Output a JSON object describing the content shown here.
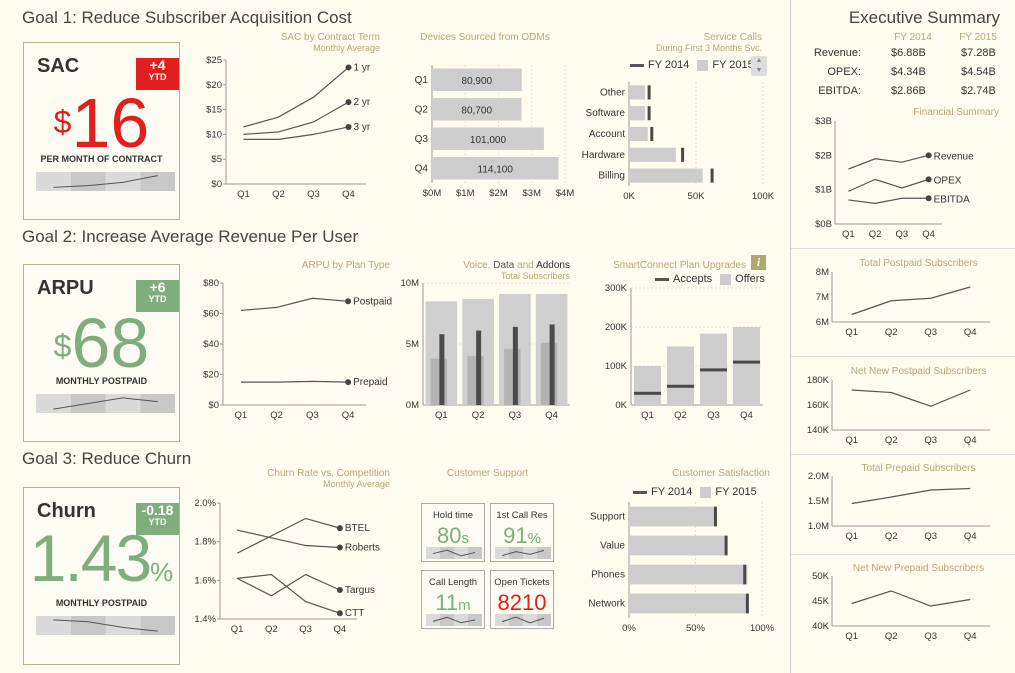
{
  "colors": {
    "red": "#e0201f",
    "green": "#7fad7d",
    "gray": "#cdcdcd",
    "dark": "#4a4a4a",
    "spark_bg": "#d3d3d3"
  },
  "goals": {
    "g1": "Goal 1: Reduce Subscriber Acquisition Cost",
    "g2": "Goal 2: Increase Average Revenue Per User",
    "g3": "Goal 3: Reduce Churn"
  },
  "kpis": [
    {
      "name": "SAC",
      "badge": "+4",
      "badge_sub": "YTD",
      "prefix": "$",
      "value": "16",
      "suffix": "",
      "caption": "PER MONTH OF CONTRACT",
      "color": "red"
    },
    {
      "name": "ARPU",
      "badge": "+6",
      "badge_sub": "YTD",
      "prefix": "$",
      "value": "68",
      "suffix": "",
      "caption": "MONTHLY POSTPAID",
      "color": "green"
    },
    {
      "name": "Churn",
      "badge": "-0.18",
      "badge_sub": "YTD",
      "prefix": "",
      "value": "1.43",
      "suffix": "%",
      "caption": "MONTHLY POSTPAID",
      "color": "green"
    }
  ],
  "charts": {
    "sac_term": {
      "title": "SAC by Contract Term",
      "subtitle": "Monthly Average"
    },
    "odm": {
      "title": "Devices Sourced from ODMs"
    },
    "service": {
      "title": "Service Calls",
      "subtitle": "During First 3 Months Svc.",
      "legend_a": "FY 2014",
      "legend_b": "FY 2015"
    },
    "arpu_plan": {
      "title": "ARPU by Plan Type"
    },
    "voice": {
      "title_a": "Voice, ",
      "title_b": "Data",
      "title_c": " and ",
      "title_d": "Addons",
      "subtitle": "Total Subscribers"
    },
    "smart": {
      "title": "SmartConnect Plan Upgrades",
      "info": "i",
      "legend_a": "Accepts",
      "legend_b": "Offers"
    },
    "churn_comp": {
      "title": "Churn Rate vs. Competition",
      "subtitle": "Monthly Average"
    },
    "support": {
      "title": "Customer Support"
    },
    "csat": {
      "title": "Customer Satisfaction",
      "legend_a": "FY 2014",
      "legend_b": "FY 2015"
    }
  },
  "support_boxes": [
    {
      "label": "Hold time",
      "value": "80",
      "unit": "s",
      "color": "green"
    },
    {
      "label": "1st Call Res",
      "value": "91",
      "unit": "%",
      "color": "green"
    },
    {
      "label": "Call Length",
      "value": "11",
      "unit": "m",
      "color": "green"
    },
    {
      "label": "Open Tickets",
      "value": "8210",
      "unit": "",
      "color": "red"
    }
  ],
  "exec": {
    "title": "Executive Summary",
    "col_a": "FY 2014",
    "col_b": "FY 2015",
    "rows": [
      {
        "label": "Revenue:",
        "a": "$6.88B",
        "b": "$7.28B"
      },
      {
        "label": "OPEX:",
        "a": "$4.34B",
        "b": "$4.54B"
      },
      {
        "label": "EBITDA:",
        "a": "$2.86B",
        "b": "$2.74B"
      }
    ],
    "fin_title": "Financial Summary",
    "t_post": "Total Postpaid Subscribers",
    "n_post": "Net New Postpaid Subscribers",
    "t_pre": "Total Prepaid Subscribers",
    "n_pre": "Net New Prepaid Subscribers"
  },
  "chart_data": [
    {
      "id": "sac_term",
      "type": "line",
      "categories": [
        "Q1",
        "Q2",
        "Q3",
        "Q4"
      ],
      "ylim": [
        0,
        25
      ],
      "yticks": [
        "$0",
        "$5",
        "$10",
        "$15",
        "$20",
        "$25"
      ],
      "series": [
        {
          "name": "1 yr",
          "values": [
            11.5,
            13.5,
            17.5,
            23.5
          ]
        },
        {
          "name": "2 yr",
          "values": [
            10,
            10.5,
            12.5,
            16.5
          ]
        },
        {
          "name": "3 yr",
          "values": [
            9,
            9,
            10,
            11.5
          ]
        }
      ]
    },
    {
      "id": "odm",
      "type": "bar",
      "categories": [
        "Q1",
        "Q2",
        "Q3",
        "Q4"
      ],
      "values": [
        80900,
        80700,
        101000,
        114100
      ],
      "labels": [
        "80,900",
        "80,700",
        "101,000",
        "114,100"
      ],
      "xlim": [
        0,
        4
      ],
      "xticks": [
        "$0M",
        "$1M",
        "$2M",
        "$3M",
        "$4M"
      ]
    },
    {
      "id": "service",
      "type": "bar",
      "categories": [
        "Other",
        "Software",
        "Account",
        "Hardware",
        "Billing"
      ],
      "xlim": [
        0,
        100000
      ],
      "xticks": [
        "0K",
        "50K",
        "100K"
      ],
      "series": [
        {
          "name": "FY 2014",
          "values": [
            15000,
            15000,
            17000,
            40000,
            62000
          ]
        },
        {
          "name": "FY 2015",
          "values": [
            12000,
            12000,
            14000,
            35000,
            55000
          ]
        }
      ]
    },
    {
      "id": "arpu_plan",
      "type": "line",
      "categories": [
        "Q1",
        "Q2",
        "Q3",
        "Q4"
      ],
      "ylim": [
        0,
        80
      ],
      "yticks": [
        "$0",
        "$20",
        "$40",
        "$60",
        "$80"
      ],
      "series": [
        {
          "name": "Postpaid",
          "values": [
            62,
            64,
            70,
            68
          ]
        },
        {
          "name": "Prepaid",
          "values": [
            15,
            15,
            15.5,
            15
          ]
        }
      ]
    },
    {
      "id": "voice",
      "type": "bar",
      "categories": [
        "Q1",
        "Q2",
        "Q3",
        "Q4"
      ],
      "ylim": [
        0,
        10
      ],
      "yticks": [
        "0M",
        "5M",
        "10M"
      ],
      "series": [
        {
          "name": "Voice",
          "values": [
            8.5,
            8.7,
            9.1,
            9.1
          ]
        },
        {
          "name": "Data",
          "values": [
            3.8,
            4.0,
            4.6,
            5.1
          ]
        },
        {
          "name": "Addons",
          "values": [
            5.8,
            6.1,
            6.4,
            6.6
          ]
        }
      ]
    },
    {
      "id": "smart",
      "type": "bar",
      "categories": [
        "Q1",
        "Q2",
        "Q3",
        "Q4"
      ],
      "ylim": [
        0,
        300000
      ],
      "yticks": [
        "0K",
        "100K",
        "200K",
        "300K"
      ],
      "series": [
        {
          "name": "Offers",
          "values": [
            100000,
            150000,
            183000,
            200000
          ]
        },
        {
          "name": "Accepts",
          "values": [
            30000,
            48000,
            90000,
            110000
          ]
        }
      ]
    },
    {
      "id": "churn_comp",
      "type": "line",
      "categories": [
        "Q1",
        "Q2",
        "Q3",
        "Q4"
      ],
      "ylim": [
        1.4,
        2.0
      ],
      "yticks": [
        "1.4%",
        "1.6%",
        "1.8%",
        "2.0%"
      ],
      "series": [
        {
          "name": "BTEL",
          "values": [
            1.74,
            1.83,
            1.92,
            1.87
          ]
        },
        {
          "name": "Roberts",
          "values": [
            1.86,
            1.82,
            1.78,
            1.77
          ]
        },
        {
          "name": "Targus",
          "values": [
            1.61,
            1.52,
            1.63,
            1.55
          ]
        },
        {
          "name": "CTT",
          "values": [
            1.61,
            1.63,
            1.49,
            1.43
          ]
        }
      ]
    },
    {
      "id": "csat",
      "type": "bar",
      "categories": [
        "Support",
        "Value",
        "Phones",
        "Network"
      ],
      "xlim": [
        0,
        100
      ],
      "xticks": [
        "0%",
        "50%",
        "100%"
      ],
      "series": [
        {
          "name": "FY 2014",
          "values": [
            65,
            73,
            87,
            89
          ]
        },
        {
          "name": "FY 2015",
          "values": [
            66,
            72,
            89,
            88
          ]
        }
      ]
    },
    {
      "id": "fin",
      "type": "line",
      "categories": [
        "Q1",
        "Q2",
        "Q3",
        "Q4"
      ],
      "ylim": [
        0,
        3
      ],
      "yticks": [
        "$0B",
        "$1B",
        "$2B",
        "$3B"
      ],
      "series": [
        {
          "name": "Revenue",
          "values": [
            1.6,
            1.9,
            1.8,
            2.0
          ]
        },
        {
          "name": "OPEX",
          "values": [
            0.95,
            1.3,
            1.05,
            1.3
          ]
        },
        {
          "name": "EBITDA",
          "values": [
            0.7,
            0.6,
            0.75,
            0.75
          ]
        }
      ]
    },
    {
      "id": "t_post",
      "type": "line",
      "categories": [
        "Q1",
        "Q2",
        "Q3",
        "Q4"
      ],
      "ylim": [
        6,
        8
      ],
      "yticks": [
        "6M",
        "7M",
        "8M"
      ],
      "series": [
        {
          "values": [
            6.3,
            6.85,
            6.95,
            7.4
          ]
        }
      ]
    },
    {
      "id": "n_post",
      "type": "line",
      "categories": [
        "Q1",
        "Q2",
        "Q3",
        "Q4"
      ],
      "ylim": [
        140,
        180
      ],
      "yticks": [
        "140K",
        "160K",
        "180K"
      ],
      "series": [
        {
          "values": [
            172,
            170,
            159,
            172
          ]
        }
      ]
    },
    {
      "id": "t_pre",
      "type": "line",
      "categories": [
        "Q1",
        "Q2",
        "Q3",
        "Q4"
      ],
      "ylim": [
        1.0,
        2.0
      ],
      "yticks": [
        "1.0M",
        "1.5M",
        "2.0M"
      ],
      "series": [
        {
          "values": [
            1.45,
            1.58,
            1.72,
            1.75
          ]
        }
      ]
    },
    {
      "id": "n_pre",
      "type": "line",
      "categories": [
        "Q1",
        "Q2",
        "Q3",
        "Q4"
      ],
      "ylim": [
        40,
        50
      ],
      "yticks": [
        "40K",
        "45K",
        "50K"
      ],
      "series": [
        {
          "values": [
            44.5,
            47,
            44,
            45.3
          ]
        }
      ]
    },
    {
      "id": "sparks",
      "type": "line",
      "series": [
        {
          "name": "SAC",
          "values": [
            3,
            4,
            6,
            10
          ]
        },
        {
          "name": "ARPU",
          "values": [
            4,
            7,
            10,
            8
          ]
        },
        {
          "name": "Churn",
          "values": [
            10,
            9,
            6,
            4
          ]
        },
        {
          "name": "Hold time",
          "values": [
            5,
            8,
            3,
            6
          ]
        },
        {
          "name": "1st Call Res",
          "values": [
            4,
            7,
            5,
            8
          ]
        },
        {
          "name": "Call Length",
          "values": [
            5,
            8,
            4,
            6
          ]
        },
        {
          "name": "Open Tickets",
          "values": [
            4,
            8,
            3,
            7
          ]
        }
      ]
    }
  ]
}
